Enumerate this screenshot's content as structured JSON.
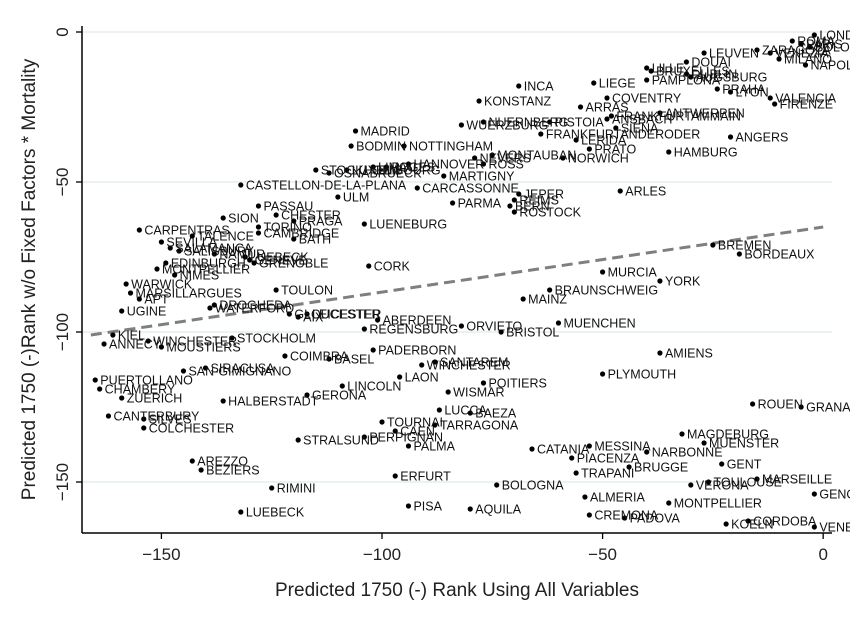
{
  "chart_data": {
    "type": "scatter",
    "xlabel": "Predicted 1750 (-) Rank Using All Variables",
    "ylabel": "Predicted 1750 (-)Rank w/o Fixed Factors * Mortality",
    "xlim": [
      -168,
      2
    ],
    "ylim": [
      -167,
      2
    ],
    "xticks": [
      -150,
      -100,
      -50,
      0
    ],
    "yticks": [
      0,
      -50,
      -100,
      -150
    ],
    "grid": "horizontal",
    "fit_line": {
      "x": [
        -166,
        0
      ],
      "y": [
        -101,
        -65
      ],
      "style": "dashed",
      "color": "#7f7f7f"
    },
    "points": [
      {
        "label": "LONDON",
        "x": -2,
        "y": -1
      },
      {
        "label": "ROMA",
        "x": -7,
        "y": -3
      },
      {
        "label": "PARIS",
        "x": -5,
        "y": -4
      },
      {
        "label": "BOLOGNA",
        "x": -3,
        "y": -5
      },
      {
        "label": "NAPOLI",
        "x": -4,
        "y": -11
      },
      {
        "label": "MILANO",
        "x": -10,
        "y": -9
      },
      {
        "label": "ZARAGOZA",
        "x": -15,
        "y": -6
      },
      {
        "label": "VENEZIA",
        "x": -12,
        "y": -7
      },
      {
        "label": "LEUVEN",
        "x": -27,
        "y": -7
      },
      {
        "label": "DOUAI",
        "x": -31,
        "y": -10
      },
      {
        "label": "LILLE",
        "x": -40,
        "y": -12
      },
      {
        "label": "BRUXELLES",
        "x": -39,
        "y": -13
      },
      {
        "label": "DUBLIN",
        "x": -31,
        "y": -14
      },
      {
        "label": "AUGSBURG",
        "x": -30,
        "y": -15
      },
      {
        "label": "PAMPLONA",
        "x": -40,
        "y": -16
      },
      {
        "label": "PRAHA",
        "x": -24,
        "y": -19
      },
      {
        "label": "LYON",
        "x": -21,
        "y": -20
      },
      {
        "label": "VALENCIA",
        "x": -12,
        "y": -22
      },
      {
        "label": "FIRENZE",
        "x": -11,
        "y": -24
      },
      {
        "label": "INCA",
        "x": -69,
        "y": -18
      },
      {
        "label": "LIEGE",
        "x": -52,
        "y": -17
      },
      {
        "label": "KONSTANZ",
        "x": -78,
        "y": -23
      },
      {
        "label": "COVENTRY",
        "x": -49,
        "y": -22
      },
      {
        "label": "ARRAS",
        "x": -55,
        "y": -25
      },
      {
        "label": "ANTWERPEN",
        "x": -37,
        "y": -27
      },
      {
        "label": "FRANKFURTAMMAIN",
        "x": -48,
        "y": -28
      },
      {
        "label": "ANSBACH",
        "x": -49,
        "y": -29
      },
      {
        "label": "NUERNBERG",
        "x": -77,
        "y": -30
      },
      {
        "label": "PISTOIA",
        "x": -62,
        "y": -30
      },
      {
        "label": "WUERZBURG",
        "x": -82,
        "y": -31
      },
      {
        "label": "SIENA",
        "x": -47,
        "y": -32
      },
      {
        "label": "MADRID",
        "x": -106,
        "y": -33
      },
      {
        "label": "FRANKFURTANDERODER",
        "x": -64,
        "y": -34
      },
      {
        "label": "ANGERS",
        "x": -21,
        "y": -35
      },
      {
        "label": "LERIDA",
        "x": -56,
        "y": -36
      },
      {
        "label": "BODMIN",
        "x": -107,
        "y": -38
      },
      {
        "label": "NOTTINGHAM",
        "x": -95,
        "y": -38
      },
      {
        "label": "PRATO",
        "x": -53,
        "y": -39
      },
      {
        "label": "HAMBURG",
        "x": -35,
        "y": -40
      },
      {
        "label": "MONTAUBAN",
        "x": -75,
        "y": -41
      },
      {
        "label": "NORWICH",
        "x": -59,
        "y": -42
      },
      {
        "label": "NEVERS",
        "x": -79,
        "y": -42
      },
      {
        "label": "HANNOVER",
        "x": -94,
        "y": -44
      },
      {
        "label": "ROSS",
        "x": -77,
        "y": -44
      },
      {
        "label": "PAU",
        "x": -99,
        "y": -45
      },
      {
        "label": "LIMOGES",
        "x": -102,
        "y": -45
      },
      {
        "label": "STOCKHOLM",
        "x": -115,
        "y": -46
      },
      {
        "label": "LUXEMBOURG",
        "x": -108,
        "y": -46
      },
      {
        "label": "OSNABRUECK",
        "x": -112,
        "y": -47
      },
      {
        "label": "MARTIGNY",
        "x": -86,
        "y": -48
      },
      {
        "label": "CASTELLON-DE-LA-PLANA",
        "x": -132,
        "y": -51
      },
      {
        "label": "CARCASSONNE",
        "x": -92,
        "y": -52
      },
      {
        "label": "ARLES",
        "x": -46,
        "y": -53
      },
      {
        "label": "JEPER",
        "x": -69,
        "y": -54
      },
      {
        "label": "ULM",
        "x": -110,
        "y": -55
      },
      {
        "label": "REIMS",
        "x": -70,
        "y": -56
      },
      {
        "label": "PARMA",
        "x": -84,
        "y": -57
      },
      {
        "label": "BERN",
        "x": -71,
        "y": -58
      },
      {
        "label": "ROSTOCK",
        "x": -70,
        "y": -60
      },
      {
        "label": "PASSAU",
        "x": -128,
        "y": -58
      },
      {
        "label": "SION",
        "x": -136,
        "y": -62
      },
      {
        "label": "CHESTER",
        "x": -124,
        "y": -61
      },
      {
        "label": "PRAGA",
        "x": -120,
        "y": -63
      },
      {
        "label": "LUENEBURG",
        "x": -104,
        "y": -64
      },
      {
        "label": "TORINO",
        "x": -128,
        "y": -65
      },
      {
        "label": "CARPENTRAS",
        "x": -155,
        "y": -66
      },
      {
        "label": "CAMBRIDGE",
        "x": -128,
        "y": -67
      },
      {
        "label": "TALENCE",
        "x": -143,
        "y": -68
      },
      {
        "label": "BATH",
        "x": -120,
        "y": -69
      },
      {
        "label": "SEVILLA",
        "x": -150,
        "y": -70
      },
      {
        "label": "SALAMANCA",
        "x": -148,
        "y": -72
      },
      {
        "label": "SALISBURY",
        "x": -146,
        "y": -73
      },
      {
        "label": "BREMEN",
        "x": -25,
        "y": -71
      },
      {
        "label": "BORDEAUX",
        "x": -19,
        "y": -74
      },
      {
        "label": "NAMUR",
        "x": -138,
        "y": -74
      },
      {
        "label": "LUEBECK",
        "x": -131,
        "y": -75
      },
      {
        "label": "GENEVE",
        "x": -130,
        "y": -76
      },
      {
        "label": "EDINBURGH",
        "x": -149,
        "y": -77
      },
      {
        "label": "GRENOBLE",
        "x": -129,
        "y": -77
      },
      {
        "label": "CORK",
        "x": -103,
        "y": -78
      },
      {
        "label": "MONTPELLIER",
        "x": -151,
        "y": -79
      },
      {
        "label": "MURCIA",
        "x": -50,
        "y": -80
      },
      {
        "label": "NIMES",
        "x": -147,
        "y": -81
      },
      {
        "label": "WARWICK",
        "x": -158,
        "y": -84
      },
      {
        "label": "YORK",
        "x": -37,
        "y": -83
      },
      {
        "label": "TOULON",
        "x": -124,
        "y": -86
      },
      {
        "label": "BRAUNSCHWEIG",
        "x": -62,
        "y": -86
      },
      {
        "label": "MARSILLARGUES",
        "x": -157,
        "y": -87
      },
      {
        "label": "APT",
        "x": -155,
        "y": -89
      },
      {
        "label": "MAINZ",
        "x": -68,
        "y": -89
      },
      {
        "label": "DROGHEDA",
        "x": -138,
        "y": -91
      },
      {
        "label": "WATERFORD",
        "x": -139,
        "y": -92
      },
      {
        "label": "UGINE",
        "x": -159,
        "y": -93
      },
      {
        "label": "AIX",
        "x": -119,
        "y": -95
      },
      {
        "label": "LEICESTER",
        "x": -117,
        "y": -94
      },
      {
        "label": "GLOUCESTER",
        "x": -121,
        "y": -94
      },
      {
        "label": "ABERDEEN",
        "x": -101,
        "y": -96
      },
      {
        "label": "REGENSBURG",
        "x": -104,
        "y": -99
      },
      {
        "label": "ORVIETO",
        "x": -82,
        "y": -98
      },
      {
        "label": "MUENCHEN",
        "x": -60,
        "y": -97
      },
      {
        "label": "BRISTOL",
        "x": -73,
        "y": -100
      },
      {
        "label": "KIEL",
        "x": -161,
        "y": -101
      },
      {
        "label": "STOCKHOLM",
        "x": -134,
        "y": -102
      },
      {
        "label": "WINCHESTER",
        "x": -153,
        "y": -103
      },
      {
        "label": "ANNECY",
        "x": -163,
        "y": -104
      },
      {
        "label": "MOUSTIERS",
        "x": -150,
        "y": -105
      },
      {
        "label": "PADERBORN",
        "x": -102,
        "y": -106
      },
      {
        "label": "AMIENS",
        "x": -37,
        "y": -107
      },
      {
        "label": "COIMBRA",
        "x": -122,
        "y": -108
      },
      {
        "label": "BASEL",
        "x": -112,
        "y": -109
      },
      {
        "label": "SANTAREM",
        "x": -88,
        "y": -110
      },
      {
        "label": "WINCHESTER",
        "x": -91,
        "y": -111
      },
      {
        "label": "SIRACUSA",
        "x": -140,
        "y": -112
      },
      {
        "label": "SAN-GIMIGNANO",
        "x": -145,
        "y": -113
      },
      {
        "label": "PLYMOUTH",
        "x": -50,
        "y": -114
      },
      {
        "label": "LAON",
        "x": -96,
        "y": -115
      },
      {
        "label": "PUERTOLLANO",
        "x": -165,
        "y": -116
      },
      {
        "label": "POITIERS",
        "x": -77,
        "y": -117
      },
      {
        "label": "LINCOLN",
        "x": -109,
        "y": -118
      },
      {
        "label": "CHAMBERY",
        "x": -164,
        "y": -119
      },
      {
        "label": "WISMAR",
        "x": -85,
        "y": -120
      },
      {
        "label": "GERONA",
        "x": -117,
        "y": -121
      },
      {
        "label": "ZUERICH",
        "x": -159,
        "y": -122
      },
      {
        "label": "HALBERSTADT",
        "x": -136,
        "y": -123
      },
      {
        "label": "ROUEN",
        "x": -16,
        "y": -124
      },
      {
        "label": "GRANADA",
        "x": -5,
        "y": -125
      },
      {
        "label": "LUCCA",
        "x": -87,
        "y": -126
      },
      {
        "label": "BAEZA",
        "x": -80,
        "y": -127
      },
      {
        "label": "CANTERBURY",
        "x": -162,
        "y": -128
      },
      {
        "label": "SILVES",
        "x": -154,
        "y": -129
      },
      {
        "label": "TOURNAI",
        "x": -100,
        "y": -130
      },
      {
        "label": "COLCHESTER",
        "x": -154,
        "y": -132
      },
      {
        "label": "TARRAGONA",
        "x": -88,
        "y": -131
      },
      {
        "label": "CAEN",
        "x": -97,
        "y": -133
      },
      {
        "label": "MAGDEBURG",
        "x": -32,
        "y": -134
      },
      {
        "label": "PERPIGNAN",
        "x": -104,
        "y": -135
      },
      {
        "label": "STRALSUND",
        "x": -119,
        "y": -136
      },
      {
        "label": "MUENSTER",
        "x": -27,
        "y": -137
      },
      {
        "label": "PALMA",
        "x": -94,
        "y": -138
      },
      {
        "label": "MESSINA",
        "x": -53,
        "y": -138
      },
      {
        "label": "CATANIA",
        "x": -66,
        "y": -139
      },
      {
        "label": "NARBONNE",
        "x": -40,
        "y": -140
      },
      {
        "label": "PIACENZA",
        "x": -57,
        "y": -142
      },
      {
        "label": "AREZZO",
        "x": -143,
        "y": -143
      },
      {
        "label": "GENT",
        "x": -23,
        "y": -144
      },
      {
        "label": "BRUGGE",
        "x": -44,
        "y": -145
      },
      {
        "label": "BEZIERS",
        "x": -141,
        "y": -146
      },
      {
        "label": "TRAPANI",
        "x": -56,
        "y": -147
      },
      {
        "label": "ERFURT",
        "x": -97,
        "y": -148
      },
      {
        "label": "MARSEILLE",
        "x": -15,
        "y": -149
      },
      {
        "label": "TOULOUSE",
        "x": -26,
        "y": -150
      },
      {
        "label": "BOLOGNA",
        "x": -74,
        "y": -151
      },
      {
        "label": "VERONA",
        "x": -30,
        "y": -151
      },
      {
        "label": "RIMINI",
        "x": -125,
        "y": -152
      },
      {
        "label": "GENOVA",
        "x": -2,
        "y": -154
      },
      {
        "label": "ALMERIA",
        "x": -54,
        "y": -155
      },
      {
        "label": "MONTPELLIER",
        "x": -35,
        "y": -157
      },
      {
        "label": "PISA",
        "x": -94,
        "y": -158
      },
      {
        "label": "AQUILA",
        "x": -80,
        "y": -159
      },
      {
        "label": "LUEBECK",
        "x": -132,
        "y": -160
      },
      {
        "label": "CREMONA",
        "x": -53,
        "y": -161
      },
      {
        "label": "PADOVA",
        "x": -45,
        "y": -162
      },
      {
        "label": "CORDOBA",
        "x": -17,
        "y": -163
      },
      {
        "label": "KOELN",
        "x": -22,
        "y": -164
      },
      {
        "label": "VENEZIA",
        "x": -2,
        "y": -165
      }
    ]
  }
}
